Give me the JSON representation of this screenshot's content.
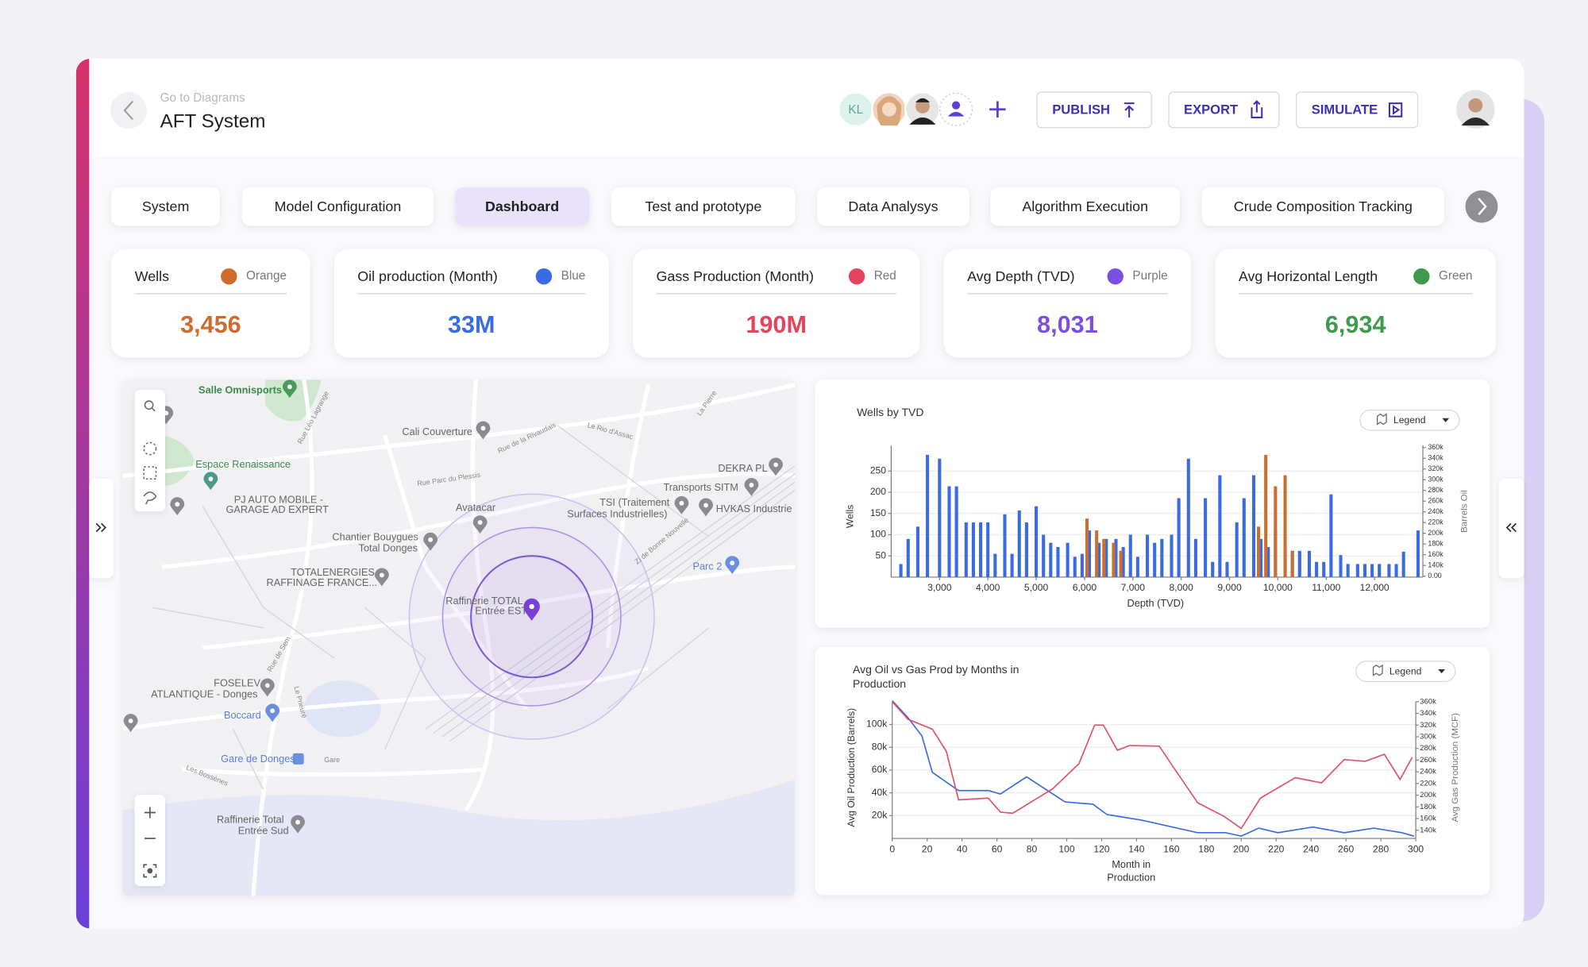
{
  "header": {
    "back_label": "Go to Diagrams",
    "title": "AFT System",
    "avatar_initials": "KL",
    "buttons": [
      "PUBLISH",
      "EXPORT",
      "SIMULATE"
    ]
  },
  "tabs": [
    "System",
    "Model Configuration",
    "Dashboard",
    "Test and prototype",
    "Data Analysys",
    "Algorithm Execution",
    "Crude Composition Tracking"
  ],
  "active_tab": 2,
  "kpis": [
    {
      "label": "Wells",
      "color_name": "Orange",
      "value": "3,456",
      "color": "#cf6b2c"
    },
    {
      "label": "Oil production (Month)",
      "color_name": "Blue",
      "value": "33M",
      "color": "#3a6be3"
    },
    {
      "label": "Gass Production (Month)",
      "color_name": "Red",
      "value": "190M",
      "color": "#e3455f"
    },
    {
      "label": "Avg Depth (TVD)",
      "color_name": "Purple",
      "value": "8,031",
      "color": "#7b4fe0"
    },
    {
      "label": "Avg Horizontal Length",
      "color_name": "Green",
      "value": "6,934",
      "color": "#3f9a4f"
    }
  ],
  "map": {
    "places": [
      "Salle Omnisports",
      "Cali Couverture",
      "Espace Renaissance",
      "PJ AUTO MOBILE -",
      "GARAGE AD EXPERT",
      "DEKRA PL",
      "Transports SITM",
      "TSI (Traitement",
      "Surfaces Industrielles)",
      "HVKAS Industrie",
      "Avatacar",
      "Chantier Bouygues",
      "Total Donges",
      "TOTALENERGIES",
      "RAFFINAGE FRANCE...",
      "Parc 2",
      "Raffinerie TOTAL",
      "Entrée EST",
      "FOSELEV",
      "ATLANTIQUE - Donges",
      "Boccard",
      "Gare de Donges",
      "Raffinerie Total",
      "Entrée Sud"
    ],
    "streets": [
      "Rue de la Rivaudais",
      "Le Rio d'Assac",
      "La Pierre",
      "Rue Parc du Plessis",
      "Rue Léo Lagrange",
      "Zi de Bonne Nouvelle",
      "Rue de Sem",
      "Le Prieuré",
      "Les Bossènes",
      "Gare"
    ]
  },
  "chart_data": [
    {
      "type": "bar",
      "title": "Wells by TVD",
      "legend_button": "Legend",
      "xlabel": "Depth (TVD)",
      "ylabel": "Wells",
      "y2label": "Barrels Oil",
      "xlim": [
        2000,
        13000
      ],
      "xticks": [
        {
          "value": 3000,
          "label": "3,000"
        },
        {
          "value": 4000,
          "label": "4,000"
        },
        {
          "value": 5000,
          "label": "5,000"
        },
        {
          "value": 6000,
          "label": "6,000"
        },
        {
          "value": 7000,
          "label": "7,000"
        },
        {
          "value": 8000,
          "label": "8,000"
        },
        {
          "value": 9000,
          "label": "9,000"
        },
        {
          "value": 10000,
          "label": "10,000"
        },
        {
          "value": 11000,
          "label": "11,000"
        },
        {
          "value": 12000,
          "label": "12,000"
        }
      ],
      "ylim": [
        0,
        310
      ],
      "yticks": [
        50,
        100,
        150,
        200,
        250
      ],
      "y2_tick_labels": [
        "0.00",
        "140k",
        "160k",
        "180k",
        "200k",
        "220k",
        "240k",
        "260k",
        "280k",
        "300k",
        "320k",
        "340k",
        "360k"
      ],
      "grid": true,
      "series": [
        {
          "color": "#3a6be3",
          "x": [
            2200,
            2350,
            2550,
            2750,
            3000,
            3200,
            3350,
            3550,
            3700,
            3850,
            4000,
            4150,
            4350,
            4500,
            4650,
            4800,
            5000,
            5150,
            5300,
            5450,
            5650,
            5800,
            5950,
            6100,
            6300,
            6450,
            6650,
            6800,
            6950,
            7100,
            7300,
            7450,
            7600,
            7800,
            7950,
            8150,
            8300,
            8500,
            8650,
            8800,
            8950,
            9150,
            9300,
            9500,
            9650,
            9800,
            9950,
            10150,
            10300,
            10450,
            10650,
            10800,
            10950,
            11100,
            11300,
            11450,
            11650,
            11800,
            11950,
            12100,
            12300,
            12450,
            12600,
            12900
          ],
          "values": [
            31,
            90,
            119,
            288,
            279,
            214,
            214,
            129,
            129,
            129,
            129,
            55,
            148,
            55,
            157,
            129,
            167,
            100,
            81,
            71,
            81,
            48,
            55,
            110,
            81,
            90,
            90,
            71,
            100,
            48,
            100,
            81,
            90,
            100,
            186,
            279,
            90,
            186,
            36,
            240,
            36,
            129,
            186,
            240,
            90,
            71,
            110,
            62,
            62,
            62,
            62,
            36,
            36,
            195,
            52,
            31,
            31,
            31,
            31,
            31,
            31,
            31,
            60,
            110
          ]
        },
        {
          "color": "#c8702f",
          "x": [
            6050,
            6250,
            6400,
            6600,
            6750,
            9600,
            9750,
            9950,
            10150,
            10300
          ],
          "values": [
            138,
            110,
            90,
            81,
            62,
            119,
            288,
            214,
            240,
            62
          ]
        }
      ]
    },
    {
      "type": "line",
      "title": "Avg Oil vs Gas Prod by Months in Production",
      "legend_button": "Legend",
      "xlabel": "Month in Production",
      "ylabel": "Avg Oil Production (Barrels)",
      "y2label": "Avg Gas Production (MCF)",
      "xlim": [
        0,
        300
      ],
      "xticks": [
        0,
        20,
        40,
        60,
        80,
        100,
        120,
        140,
        160,
        180,
        200,
        220,
        240,
        260,
        280,
        300
      ],
      "ylim": [
        0,
        120000
      ],
      "yticks": [
        {
          "value": 20000,
          "label": "20k"
        },
        {
          "value": 40000,
          "label": "40k"
        },
        {
          "value": 60000,
          "label": "60k"
        },
        {
          "value": 80000,
          "label": "80k"
        },
        {
          "value": 100000,
          "label": "100k"
        }
      ],
      "y2lim": [
        126000,
        360000
      ],
      "y2ticks": [
        {
          "value": 140000,
          "label": "140k"
        },
        {
          "value": 160000,
          "label": "160k"
        },
        {
          "value": 180000,
          "label": "180k"
        },
        {
          "value": 200000,
          "label": "200k"
        },
        {
          "value": 220000,
          "label": "220k"
        },
        {
          "value": 240000,
          "label": "240k"
        },
        {
          "value": 260000,
          "label": "260k"
        },
        {
          "value": 280000,
          "label": "280k"
        },
        {
          "value": 300000,
          "label": "300k"
        },
        {
          "value": 320000,
          "label": "320k"
        },
        {
          "value": 340000,
          "label": "340k"
        },
        {
          "value": 360000,
          "label": "360k"
        }
      ],
      "grid": true,
      "series": [
        {
          "color": "#3a6be3",
          "x": [
            0,
            9,
            17,
            23,
            38,
            55,
            62,
            77,
            99,
            115,
            123,
            143,
            175,
            191,
            200,
            210,
            221,
            241,
            259,
            276,
            292,
            299
          ],
          "values": [
            121000,
            106000,
            90000,
            58000,
            42000,
            42000,
            39000,
            54000,
            32000,
            30000,
            21000,
            16000,
            5000,
            5000,
            2000,
            9000,
            5000,
            10000,
            5000,
            9000,
            5000,
            2000
          ]
        },
        {
          "color": "#e0506a",
          "axis": "y2",
          "x": [
            0,
            9,
            23,
            31,
            38,
            55,
            62,
            69,
            92,
            107,
            116,
            121,
            129,
            136,
            153,
            162,
            175,
            190,
            200,
            211,
            231,
            246,
            259,
            271,
            282,
            291,
            298
          ],
          "values": [
            360000,
            330000,
            313000,
            275000,
            192000,
            195000,
            171000,
            169000,
            211000,
            254000,
            320000,
            320000,
            277000,
            285000,
            284000,
            244000,
            187000,
            164000,
            143000,
            195000,
            230000,
            221000,
            261000,
            258000,
            270000,
            227000,
            265000
          ]
        }
      ]
    }
  ]
}
